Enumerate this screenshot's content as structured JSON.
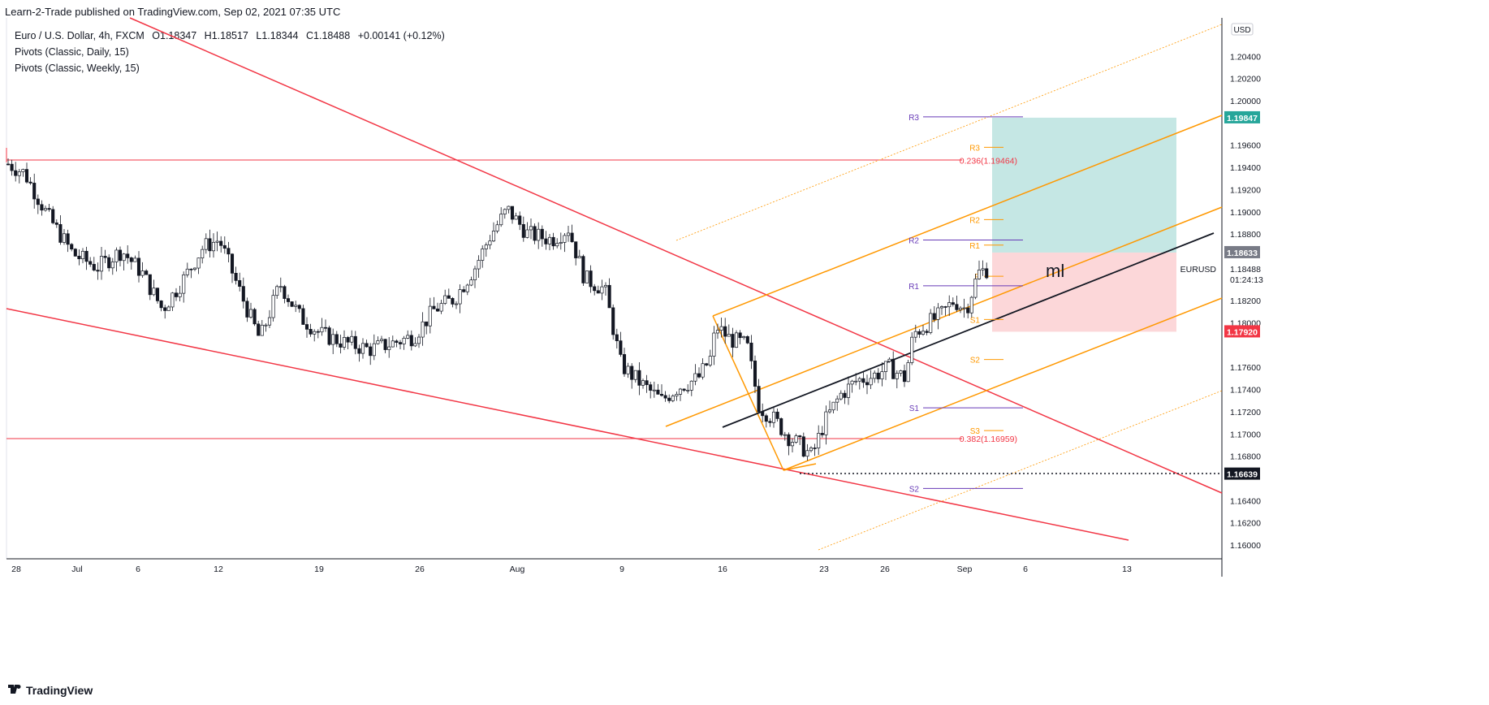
{
  "header": {
    "published": "Learn-2-Trade published on TradingView.com, Sep 02, 2021 07:35 UTC"
  },
  "legend": {
    "symbol": "Euro / U.S. Dollar, 4h, FXCM",
    "open": "O1.18347",
    "high": "H1.18517",
    "low": "L1.18344",
    "close": "C1.18488",
    "change": "+0.00141 (+0.12%)",
    "indicator1": "Pivots (Classic, Daily, 15)",
    "indicator2": "Pivots (Classic, Weekly, 15)"
  },
  "footer": {
    "brand": "TradingView"
  },
  "colors": {
    "up": "#ffffff",
    "down": "#131722",
    "trend_red": "#f23645",
    "fib_red": "#f23645",
    "channel_orange": "#ff9800",
    "weekly_pivot": "#673ab7",
    "daily_pivot": "#ff9800",
    "target_zone": "#b2dfdb",
    "stop_zone": "#fcd0d2",
    "support_line": "#131722"
  },
  "chart_data": {
    "type": "candlestick",
    "symbol": "EURUSD",
    "timeframe": "4h",
    "currency": "USD",
    "ylim": [
      1.1595,
      1.21
    ],
    "y_ticks": [
      "1.20400",
      "1.20200",
      "1.20000",
      "1.19600",
      "1.19400",
      "1.19200",
      "1.19000",
      "1.18800",
      "1.18200",
      "1.18000",
      "1.17600",
      "1.17400",
      "1.17200",
      "1.17000",
      "1.16800",
      "1.16400",
      "1.16200",
      "1.16000"
    ],
    "x_ticks": [
      "28",
      "Jul",
      "6",
      "12",
      "19",
      "26",
      "Aug",
      "9",
      "16",
      "23",
      "26",
      "Sep",
      "6",
      "13"
    ],
    "last_price": {
      "symbol": "EURUSD",
      "value": "1.18488",
      "countdown": "01:24:13"
    },
    "price_labels": [
      {
        "value": "1.19847",
        "color": "#26a69a"
      },
      {
        "value": "1.18633",
        "color": "#787b86"
      },
      {
        "value": "1.17920",
        "color": "#f23645"
      },
      {
        "value": "1.16639",
        "color": "#131722"
      }
    ],
    "fibonacci": [
      {
        "label": "0.236(1.19464)",
        "price": 1.19464
      },
      {
        "label": "0.382(1.16959)",
        "price": 1.16959
      }
    ],
    "pivots_daily": [
      {
        "label": "R3",
        "price": 1.1958
      },
      {
        "label": "R2",
        "price": 1.1893
      },
      {
        "label": "R1",
        "price": 1.187
      },
      {
        "label": "P",
        "price": 1.1842
      },
      {
        "label": "S1",
        "price": 1.1803
      },
      {
        "label": "S2",
        "price": 1.1767
      },
      {
        "label": "S3",
        "price": 1.1703
      }
    ],
    "pivots_weekly": [
      {
        "label": "R3",
        "price": 1.19855
      },
      {
        "label": "R2",
        "price": 1.18746
      },
      {
        "label": "R1",
        "price": 1.18334
      },
      {
        "label": "S1",
        "price": 1.17235
      },
      {
        "label": "S2",
        "price": 1.16509
      }
    ],
    "annotations": {
      "median_line": "ml"
    },
    "position": {
      "entry": 1.18633,
      "target": 1.19847,
      "stop": 1.1792
    }
  }
}
